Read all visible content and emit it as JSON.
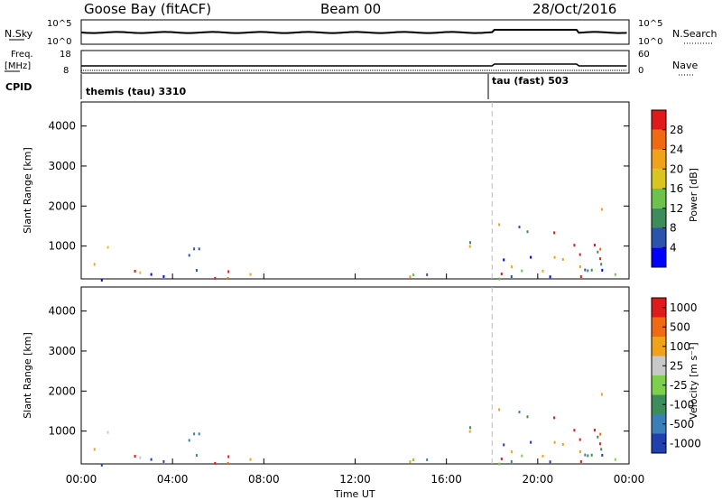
{
  "header": {
    "title_left": "Goose Bay (fitACF)",
    "title_mid": "Beam 00",
    "title_right": "28/Oct/2016"
  },
  "top_panels": {
    "nsky_label": "N.Sky",
    "nsky_ticks": [
      "10^5",
      "10^0"
    ],
    "nsearch_label": "N.Search",
    "nsearch_ticks": [
      "10^5",
      "10^0"
    ],
    "freq_label_1": "Freq.",
    "freq_label_2": "[MHz]",
    "freq_ticks": [
      "18",
      "8"
    ],
    "nave_label": "Nave",
    "nave_ticks": [
      "60",
      "0"
    ],
    "cpid_label": "CPID",
    "cpid_modes": [
      {
        "name": "themis (tau) 3310",
        "start_hour": 0,
        "end_hour": 18
      },
      {
        "name": "tau (fast) 503",
        "start_hour": 18,
        "end_hour": 24
      }
    ]
  },
  "chart_data": [
    {
      "type": "heatmap",
      "panel": "power",
      "ylabel": "Slant Range [km]",
      "xlabel": "",
      "y_ticks": [
        "1000",
        "2000",
        "3000",
        "4000"
      ],
      "ylim": [
        180,
        4600
      ],
      "xlim_hours": [
        0,
        24
      ],
      "colorbar_label": "Power [dB]",
      "colorbar_ticks": [
        "4",
        "8",
        "12",
        "16",
        "20",
        "24",
        "28"
      ],
      "colorbar_colors": [
        "#0000ff",
        "#2b55aa",
        "#3d8c5c",
        "#6cc24a",
        "#d9c61c",
        "#f0a21a",
        "#f06a14",
        "#e01a1a"
      ],
      "mode_change_hour": 18
    },
    {
      "type": "heatmap",
      "panel": "velocity",
      "ylabel": "Slant Range [km]",
      "xlabel": "Time UT",
      "y_ticks": [
        "1000",
        "2000",
        "3000",
        "4000"
      ],
      "ylim": [
        180,
        4600
      ],
      "x_ticks": [
        "00:00",
        "04:00",
        "08:00",
        "12:00",
        "16:00",
        "20:00",
        "00:00"
      ],
      "x_tick_hours": [
        0,
        4,
        8,
        12,
        16,
        20,
        24
      ],
      "colorbar_label": "Velocity [m s⁻¹]",
      "colorbar_ticks": [
        "1000",
        "500",
        "100",
        "25",
        "-25",
        "-100",
        "-500",
        "-1000"
      ],
      "colorbar_colors": [
        "#2040b0",
        "#3a7fb8",
        "#3d8c5c",
        "#7ed04a",
        "#c8c8c8",
        "#f0a21a",
        "#f06a14",
        "#e01a1a"
      ],
      "mode_change_hour": 18
    }
  ]
}
